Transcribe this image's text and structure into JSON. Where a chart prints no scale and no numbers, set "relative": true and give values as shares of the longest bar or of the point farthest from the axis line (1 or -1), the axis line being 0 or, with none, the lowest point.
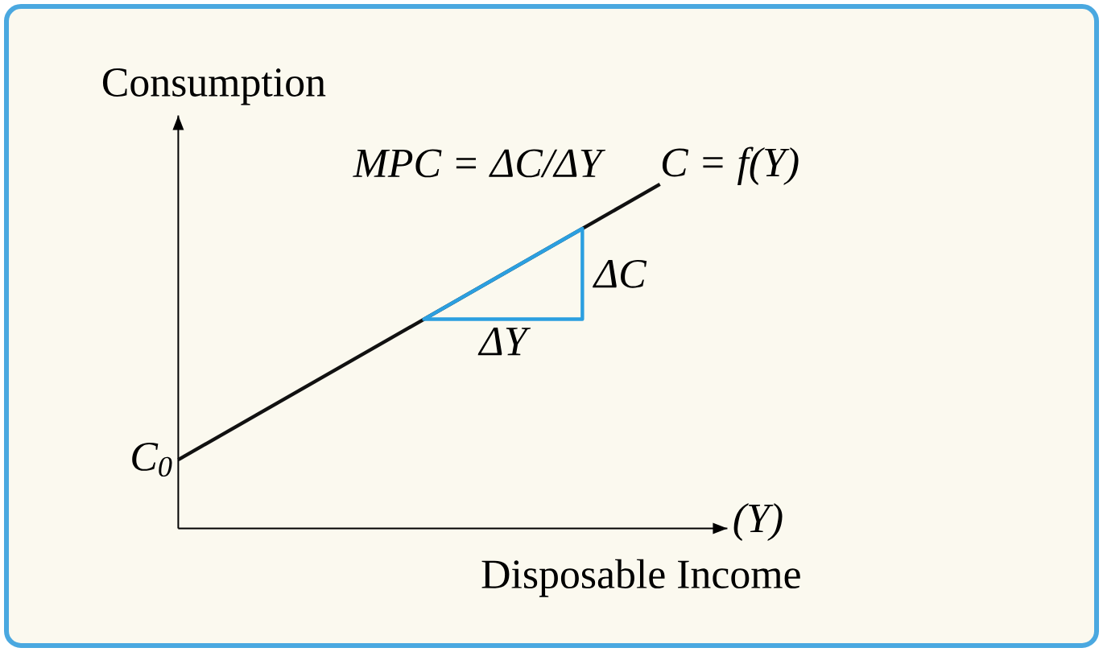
{
  "chart_data": {
    "type": "line",
    "relative": true,
    "xlabel": "Disposable Income",
    "ylabel": "Consumption",
    "categories": [
      null,
      null
    ],
    "series": [
      {
        "name": "C = f(Y)",
        "color": "#111111",
        "values": [
          0.2,
          1
        ]
      }
    ],
    "annotations": [
      "MPC = ΔC/ΔY",
      "ΔC",
      "ΔY",
      "(Y)",
      "C$_{0}$"
    ]
  }
}
